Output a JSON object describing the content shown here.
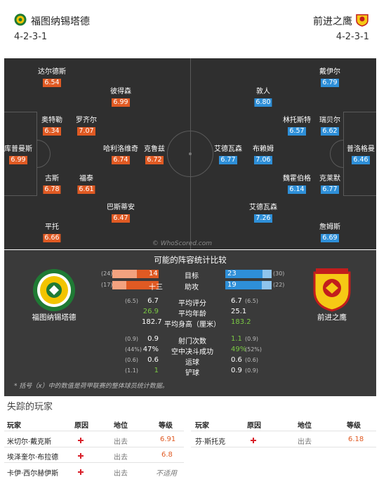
{
  "header": {
    "home": {
      "name": "福图纳锡塔德",
      "formation": "4-2-3-1"
    },
    "away": {
      "name": "前进之鹰",
      "formation": "4-2-3-1"
    }
  },
  "pitch": {
    "watermark": "© WhoScored.com",
    "home_players": [
      {
        "name": "达尔德斯",
        "rating": "6.54"
      },
      {
        "name": "彼得森",
        "rating": "6.99"
      },
      {
        "name": "奥特勒",
        "rating": "6.34"
      },
      {
        "name": "罗齐尔",
        "rating": "7.07"
      },
      {
        "name": "库普曼斯",
        "rating": "6.99"
      },
      {
        "name": "哈利洛维奇",
        "rating": "6.74"
      },
      {
        "name": "克鲁兹",
        "rating": "6.72"
      },
      {
        "name": "古斯",
        "rating": "6.78"
      },
      {
        "name": "福泰",
        "rating": "6.61"
      },
      {
        "name": "巴斯蒂安",
        "rating": "6.47"
      },
      {
        "name": "平托",
        "rating": "6.66"
      }
    ],
    "away_players": [
      {
        "name": "敦人",
        "rating": "6.80"
      },
      {
        "name": "戴伊尔",
        "rating": "6.79"
      },
      {
        "name": "林托斯特",
        "rating": "6.57"
      },
      {
        "name": "瑞贝尔",
        "rating": "6.62"
      },
      {
        "name": "艾德瓦森",
        "rating": "6.77"
      },
      {
        "name": "布赖姆",
        "rating": "7.06"
      },
      {
        "name": "普洛格曼",
        "rating": "6.46"
      },
      {
        "name": "魏霍伯格",
        "rating": "6.14"
      },
      {
        "name": "克莱默",
        "rating": "6.77"
      },
      {
        "name": "艾德瓦森",
        "rating": "7.26"
      },
      {
        "name": "詹姆斯",
        "rating": "6.69"
      }
    ]
  },
  "comparison": {
    "title": "可能的阵容统计比较",
    "home_team": "福图纳锡塔德",
    "away_team": "前进之鹰",
    "bar_stats": [
      {
        "label": "目标",
        "home": "14",
        "home_avg": "(24)",
        "away": "23",
        "away_avg": "(30)",
        "home_share": 0.47,
        "away_share": 0.8
      },
      {
        "label": "助攻",
        "home": "十三",
        "home_avg": "(17)",
        "away": "19",
        "away_avg": "(22)",
        "home_share": 0.7,
        "away_share": 0.79
      }
    ],
    "group1": [
      {
        "label": "平均评分",
        "home_avg": "(6.5)",
        "home": "6.7",
        "away": "6.7",
        "away_avg": "(6.5)"
      },
      {
        "label": "平均年龄",
        "home_avg": "",
        "home": "26.9",
        "away": "25.1",
        "away_avg": ""
      },
      {
        "label": "平均身高（厘米）",
        "home_avg": "",
        "home": "182.7",
        "away": "183.2",
        "away_avg": ""
      }
    ],
    "group2": [
      {
        "label": "射门次数",
        "home_avg": "(0.9)",
        "home": "0.9",
        "away": "1.1",
        "away_avg": "(0.9)"
      },
      {
        "label": "空中决斗成功",
        "home_avg": "(44%)",
        "home": "47%",
        "away": "49%",
        "away_avg": "(52%)"
      },
      {
        "label": "运球",
        "home_avg": "(0.6)",
        "home": "0.6",
        "away": "0.6",
        "away_avg": "(0.6)"
      },
      {
        "label": "铲球",
        "home_avg": "(1.1)",
        "home": "1",
        "away": "0.9",
        "away_avg": "(0.9)"
      }
    ],
    "note": "* 括号（x）中的数值是荷甲联赛的整体球员统计数据。"
  },
  "missing": {
    "title": "失踪的玩家",
    "headers": {
      "player": "玩家",
      "reason": "原因",
      "status": "地位",
      "rating": "等级"
    },
    "home": [
      {
        "player": "米切尔·戴克斯",
        "status": "出去",
        "rating": "6.91"
      },
      {
        "player": "埃泽奎尔·布拉德",
        "status": "出去",
        "rating": "6.8"
      },
      {
        "player": "卡伊·西尔赫伊斯",
        "status": "出去",
        "rating": "不适用"
      }
    ],
    "away": [
      {
        "player": "芬·斯托克",
        "status": "出去",
        "rating": "6.18"
      }
    ]
  },
  "colors": {
    "home": "#e05a23",
    "away": "#2e8fd8",
    "pitch": "#2f2f2f",
    "panel": "#3a3a3a"
  }
}
